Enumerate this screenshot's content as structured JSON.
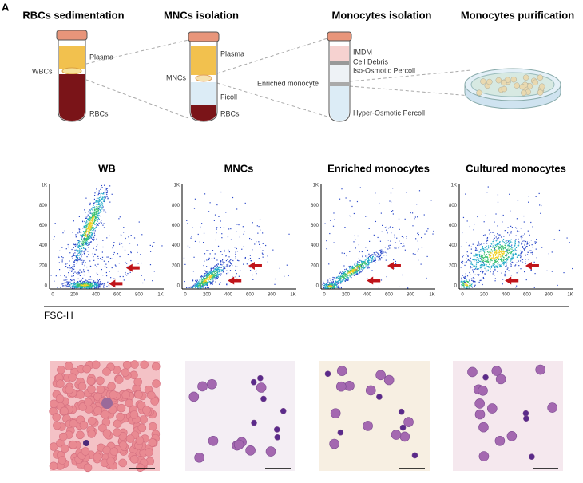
{
  "panel_label": "A",
  "section_a": {
    "titles": [
      "RBCs sedimentation",
      "MNCs isolation",
      "Monocytes isolation",
      "Monocytes purification"
    ],
    "tube1": {
      "plasma": "Plasma",
      "wbcs": "WBCs",
      "rbcs": "RBCs"
    },
    "tube2": {
      "plasma": "Plasma",
      "mncs": "MNCs",
      "ficoll": "Ficoll",
      "rbcs": "RBCs"
    },
    "tube3": {
      "imdm": "IMDM",
      "debris": "Cell Debris",
      "iso": "Iso-Osmotic Percoll",
      "enriched": "Enriched monocyte",
      "hyper": "Hyper-Osmotic Percoll"
    }
  },
  "section_b": {
    "titles": [
      "WB",
      "MNCs",
      "Enriched monocytes",
      "Cultured monocytes"
    ],
    "y_tick_labels": [
      "1K",
      "800",
      "600",
      "400",
      "200",
      "0"
    ],
    "x_tick_labels": [
      "0",
      "200",
      "400",
      "600",
      "800",
      "1K"
    ],
    "x_axis_label": "FSC-H"
  }
}
